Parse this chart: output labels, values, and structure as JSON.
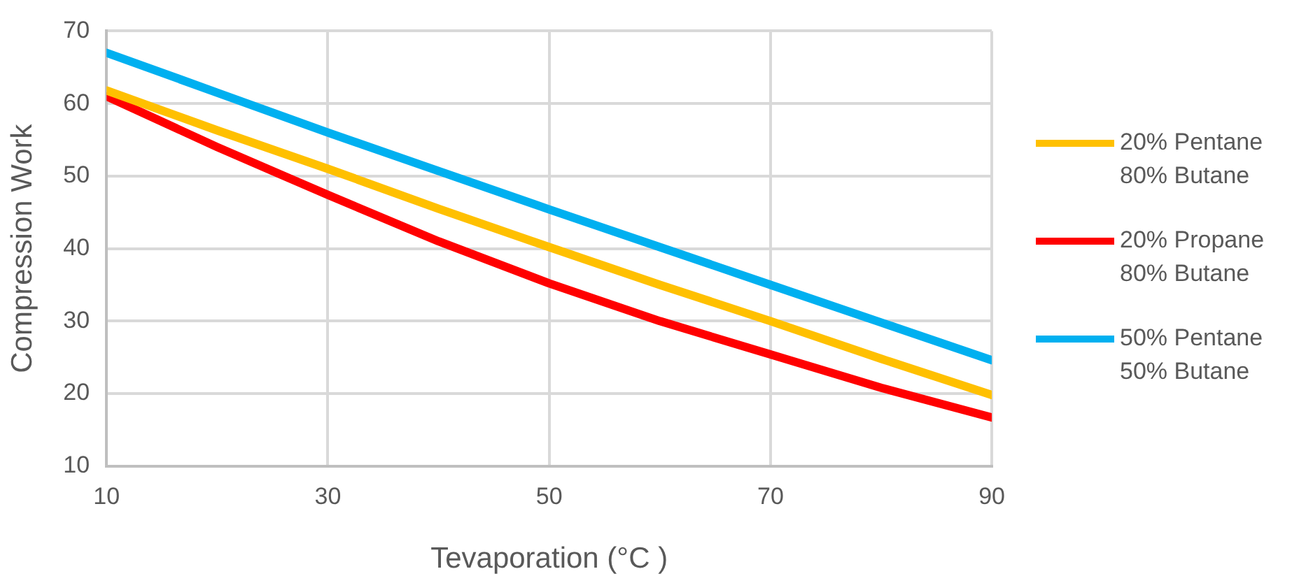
{
  "chart_data": {
    "type": "line",
    "xlabel": "Tevaporation (°C )",
    "ylabel": "Compression Work",
    "x": [
      10,
      20,
      30,
      40,
      50,
      60,
      70,
      80,
      90
    ],
    "xlim": [
      10,
      90
    ],
    "xticks": [
      10,
      30,
      50,
      70,
      90
    ],
    "ylim": [
      10,
      70
    ],
    "yticks": [
      10,
      20,
      30,
      40,
      50,
      60,
      70
    ],
    "grid": true,
    "legend": "right",
    "marker": "none",
    "line_style": "solid",
    "series": [
      {
        "name": "20% Pentane 80% Butane",
        "color": "#ffc000",
        "values": [
          61.8,
          56.3,
          51,
          45.5,
          40.2,
          35,
          30,
          24.8,
          19.8
        ]
      },
      {
        "name": "20% Propane 80% Butane",
        "color": "#ff0000",
        "values": [
          61,
          54,
          47.4,
          41,
          35.2,
          30,
          25.4,
          20.8,
          16.7
        ]
      },
      {
        "name": "50% Pentane 50% Butane",
        "color": "#00b0f0",
        "values": [
          67,
          61.5,
          56,
          50.7,
          45.4,
          40.2,
          35,
          29.8,
          24.6
        ]
      }
    ]
  }
}
